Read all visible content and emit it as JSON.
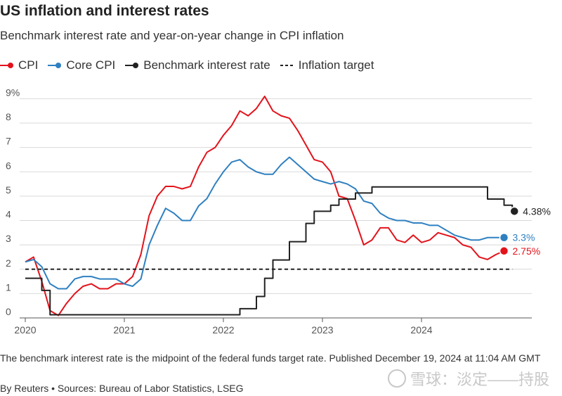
{
  "header": {
    "title": "US inflation and interest rates",
    "subtitle": "Benchmark interest rate and year-on-year change in CPI inflation"
  },
  "legend": [
    {
      "label": "CPI",
      "color": "#e3121b",
      "style": "solid"
    },
    {
      "label": "Core CPI",
      "color": "#2f80c1",
      "style": "solid"
    },
    {
      "label": "Benchmark interest rate",
      "color": "#222222",
      "style": "solid"
    },
    {
      "label": "Inflation target",
      "color": "#222222",
      "style": "dashed"
    }
  ],
  "footer": {
    "note": "The benchmark interest rate is the midpoint of the federal funds target rate. Published December 19, 2024 at 11:04 AM GMT",
    "byline": "By Reuters • Sources: Bureau of Labor Statistics, LSEG",
    "watermark": "雪球：淡定——持股"
  },
  "chart_data": {
    "type": "line",
    "title": "US inflation and interest rates",
    "subtitle": "Benchmark interest rate and year-on-year change in CPI inflation",
    "xlabel": "",
    "ylabel": "",
    "x_ticks": [
      "2020",
      "2021",
      "2022",
      "2023",
      "2024"
    ],
    "y_ticks": [
      "0",
      "1",
      "2",
      "3",
      "4",
      "5",
      "6",
      "7",
      "8",
      "9%"
    ],
    "ylim": [
      0,
      9.3
    ],
    "xlim": [
      "2020-01",
      "2024-12"
    ],
    "grid": "horizontal",
    "legend_position": "top-left",
    "series": [
      {
        "name": "CPI",
        "color": "#e3121b",
        "end_label": "2.75%",
        "x": [
          "2020-01",
          "2020-02",
          "2020-03",
          "2020-04",
          "2020-05",
          "2020-06",
          "2020-07",
          "2020-08",
          "2020-09",
          "2020-10",
          "2020-11",
          "2020-12",
          "2021-01",
          "2021-02",
          "2021-03",
          "2021-04",
          "2021-05",
          "2021-06",
          "2021-07",
          "2021-08",
          "2021-09",
          "2021-10",
          "2021-11",
          "2021-12",
          "2022-01",
          "2022-02",
          "2022-03",
          "2022-04",
          "2022-05",
          "2022-06",
          "2022-07",
          "2022-08",
          "2022-09",
          "2022-10",
          "2022-11",
          "2022-12",
          "2023-01",
          "2023-02",
          "2023-03",
          "2023-04",
          "2023-05",
          "2023-06",
          "2023-07",
          "2023-08",
          "2023-09",
          "2023-10",
          "2023-11",
          "2023-12",
          "2024-01",
          "2024-02",
          "2024-03",
          "2024-04",
          "2024-05",
          "2024-06",
          "2024-07",
          "2024-08",
          "2024-09",
          "2024-10",
          "2024-11"
        ],
        "values": [
          2.3,
          2.5,
          1.5,
          0.3,
          0.1,
          0.6,
          1.0,
          1.3,
          1.4,
          1.2,
          1.2,
          1.4,
          1.4,
          1.7,
          2.6,
          4.2,
          5.0,
          5.4,
          5.4,
          5.3,
          5.4,
          6.2,
          6.8,
          7.0,
          7.5,
          7.9,
          8.5,
          8.3,
          8.6,
          9.1,
          8.5,
          8.3,
          8.2,
          7.7,
          7.1,
          6.5,
          6.4,
          6.0,
          5.0,
          4.9,
          4.0,
          3.0,
          3.2,
          3.7,
          3.7,
          3.2,
          3.1,
          3.4,
          3.1,
          3.2,
          3.5,
          3.4,
          3.3,
          3.0,
          2.9,
          2.5,
          2.4,
          2.6,
          2.75
        ]
      },
      {
        "name": "Core CPI",
        "color": "#2f80c1",
        "end_label": "3.3%",
        "x": [
          "2020-01",
          "2020-02",
          "2020-03",
          "2020-04",
          "2020-05",
          "2020-06",
          "2020-07",
          "2020-08",
          "2020-09",
          "2020-10",
          "2020-11",
          "2020-12",
          "2021-01",
          "2021-02",
          "2021-03",
          "2021-04",
          "2021-05",
          "2021-06",
          "2021-07",
          "2021-08",
          "2021-09",
          "2021-10",
          "2021-11",
          "2021-12",
          "2022-01",
          "2022-02",
          "2022-03",
          "2022-04",
          "2022-05",
          "2022-06",
          "2022-07",
          "2022-08",
          "2022-09",
          "2022-10",
          "2022-11",
          "2022-12",
          "2023-01",
          "2023-02",
          "2023-03",
          "2023-04",
          "2023-05",
          "2023-06",
          "2023-07",
          "2023-08",
          "2023-09",
          "2023-10",
          "2023-11",
          "2023-12",
          "2024-01",
          "2024-02",
          "2024-03",
          "2024-04",
          "2024-05",
          "2024-06",
          "2024-07",
          "2024-08",
          "2024-09",
          "2024-10",
          "2024-11"
        ],
        "values": [
          2.3,
          2.4,
          2.1,
          1.4,
          1.2,
          1.2,
          1.6,
          1.7,
          1.7,
          1.6,
          1.6,
          1.6,
          1.4,
          1.3,
          1.6,
          3.0,
          3.8,
          4.5,
          4.3,
          4.0,
          4.0,
          4.6,
          4.9,
          5.5,
          6.0,
          6.4,
          6.5,
          6.2,
          6.0,
          5.9,
          5.9,
          6.3,
          6.6,
          6.3,
          6.0,
          5.7,
          5.6,
          5.5,
          5.6,
          5.5,
          5.3,
          4.8,
          4.7,
          4.3,
          4.1,
          4.0,
          4.0,
          3.9,
          3.9,
          3.8,
          3.8,
          3.6,
          3.4,
          3.3,
          3.2,
          3.2,
          3.3,
          3.3,
          3.3
        ]
      },
      {
        "name": "Benchmark interest rate",
        "color": "#222222",
        "end_label": "4.38%",
        "step": true,
        "x": [
          "2020-01",
          "2020-03",
          "2020-04",
          "2022-03",
          "2022-04",
          "2022-05",
          "2022-06",
          "2022-07",
          "2022-09",
          "2022-11",
          "2022-12",
          "2023-02",
          "2023-03",
          "2023-05",
          "2023-07",
          "2024-09",
          "2024-11",
          "2024-12"
        ],
        "values": [
          1.63,
          1.13,
          0.13,
          0.38,
          0.38,
          0.88,
          1.63,
          2.38,
          3.13,
          3.88,
          4.38,
          4.63,
          4.88,
          5.13,
          5.38,
          4.88,
          4.63,
          4.38
        ]
      },
      {
        "name": "Inflation target",
        "color": "#222222",
        "style": "dashed",
        "x": [
          "2020-01",
          "2024-12"
        ],
        "values": [
          2,
          2
        ]
      }
    ]
  }
}
